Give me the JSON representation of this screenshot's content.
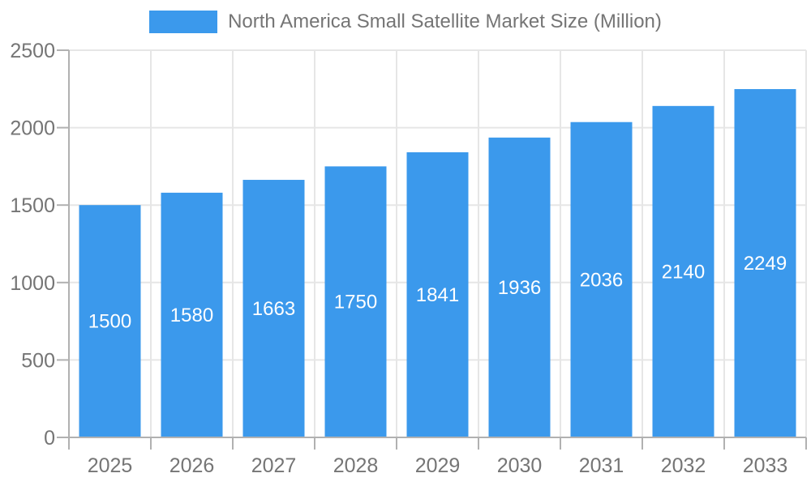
{
  "legend": {
    "label": "North America Small Satellite Market Size (Million)"
  },
  "chart_data": {
    "type": "bar",
    "title": "North America Small Satellite Market Size (Million)",
    "categories": [
      "2025",
      "2026",
      "2027",
      "2028",
      "2029",
      "2030",
      "2031",
      "2032",
      "2033"
    ],
    "values": [
      1500,
      1580,
      1663,
      1750,
      1841,
      1936,
      2036,
      2140,
      2249
    ],
    "xlabel": "",
    "ylabel": "",
    "ylim": [
      0,
      2500
    ],
    "yticks": [
      0,
      500,
      1000,
      1500,
      2000,
      2500
    ],
    "grid": true,
    "legend_position": "top",
    "colors": {
      "bar": "#3b99ec",
      "axis": "#b1b1b1",
      "grid": "#e6e6e6",
      "text": "#757575",
      "value_label": "#ffffff"
    }
  }
}
